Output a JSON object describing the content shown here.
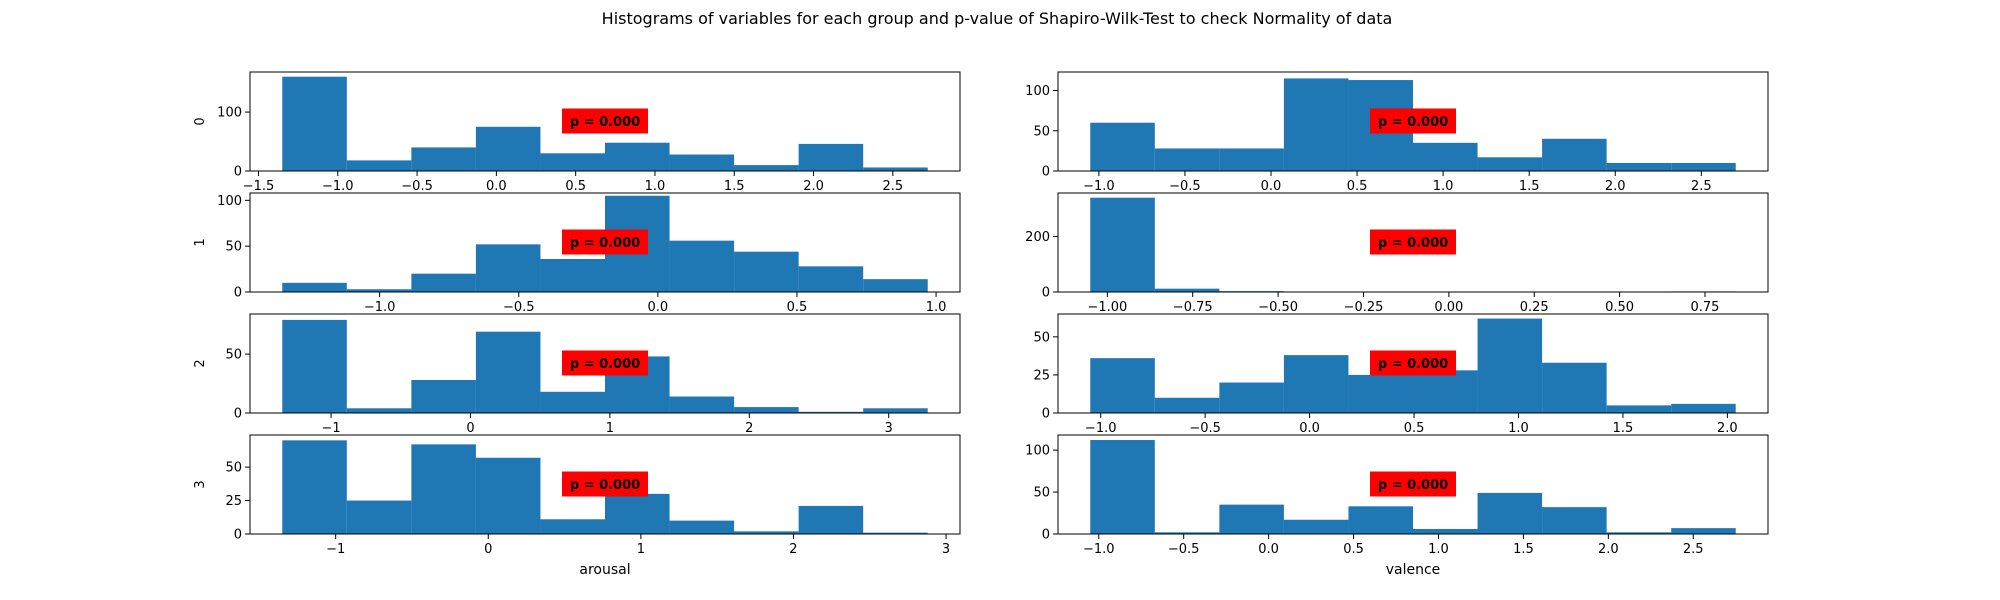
{
  "figure": {
    "title": "Histograms of variables for each group and p-value of Shapiro-Wilk-Test to check Normality of data"
  },
  "colors": {
    "bar": "#1f77b4",
    "pbox": "#ff0000"
  },
  "chart_data": [
    {
      "type": "bar",
      "panel": "arousal-group-0",
      "ylabel": "0",
      "xlabel": "",
      "annotation": "p = 0.000",
      "x_range": [
        -1.35,
        2.72
      ],
      "ylim": [
        0,
        168
      ],
      "xticks": [
        -1.5,
        -1.0,
        -0.5,
        0.0,
        0.5,
        1.0,
        1.5,
        2.0,
        2.5
      ],
      "xtick_labels": [
        "−1.5",
        "−1.0",
        "−0.5",
        "0.0",
        "0.5",
        "1.0",
        "1.5",
        "2.0",
        "2.5"
      ],
      "yticks": [
        0,
        100
      ],
      "ytick_labels": [
        "0",
        "100"
      ],
      "values": [
        160,
        18,
        40,
        75,
        30,
        48,
        28,
        10,
        46,
        6
      ]
    },
    {
      "type": "bar",
      "panel": "valence-group-0",
      "ylabel": "",
      "xlabel": "",
      "annotation": "p = 0.000",
      "x_range": [
        -1.05,
        2.7
      ],
      "ylim": [
        0,
        123
      ],
      "xticks": [
        -1.0,
        -0.5,
        0.0,
        0.5,
        1.0,
        1.5,
        2.0,
        2.5
      ],
      "xtick_labels": [
        "−1.0",
        "−0.5",
        "0.0",
        "0.5",
        "1.0",
        "1.5",
        "2.0",
        "2.5"
      ],
      "yticks": [
        0,
        50,
        100
      ],
      "ytick_labels": [
        "0",
        "50",
        "100"
      ],
      "values": [
        60,
        28,
        28,
        115,
        113,
        35,
        17,
        40,
        10,
        10
      ]
    },
    {
      "type": "bar",
      "panel": "arousal-group-1",
      "ylabel": "1",
      "xlabel": "",
      "annotation": "p = 0.000",
      "x_range": [
        -1.35,
        0.97
      ],
      "ylim": [
        0,
        108
      ],
      "xticks": [
        -1.0,
        -0.5,
        0.0,
        0.5,
        1.0
      ],
      "xtick_labels": [
        "−1.0",
        "−0.5",
        "0.0",
        "0.5",
        "1.0"
      ],
      "yticks": [
        0,
        50,
        100
      ],
      "ytick_labels": [
        "0",
        "50",
        "100"
      ],
      "values": [
        10,
        3,
        20,
        52,
        36,
        105,
        56,
        44,
        28,
        14
      ]
    },
    {
      "type": "bar",
      "panel": "valence-group-1",
      "ylabel": "",
      "xlabel": "",
      "annotation": "p = 0.000",
      "x_range": [
        -1.05,
        0.84
      ],
      "ylim": [
        0,
        357
      ],
      "xticks": [
        -1.0,
        -0.75,
        -0.5,
        -0.25,
        0.0,
        0.25,
        0.5,
        0.75
      ],
      "xtick_labels": [
        "−1.00",
        "−0.75",
        "−0.50",
        "−0.25",
        "0.00",
        "0.25",
        "0.50",
        "0.75"
      ],
      "yticks": [
        0,
        200
      ],
      "ytick_labels": [
        "0",
        "200"
      ],
      "values": [
        340,
        12,
        3,
        0,
        0,
        0,
        0,
        0,
        0,
        2
      ]
    },
    {
      "type": "bar",
      "panel": "arousal-group-2",
      "ylabel": "2",
      "xlabel": "",
      "annotation": "p = 0.000",
      "x_range": [
        -1.35,
        3.28
      ],
      "ylim": [
        0,
        84
      ],
      "xticks": [
        -1,
        0,
        1,
        2,
        3
      ],
      "xtick_labels": [
        "−1",
        "0",
        "1",
        "2",
        "3"
      ],
      "yticks": [
        0,
        50
      ],
      "ytick_labels": [
        "0",
        "50"
      ],
      "values": [
        79,
        4,
        28,
        69,
        18,
        48,
        14,
        5,
        1,
        4
      ]
    },
    {
      "type": "bar",
      "panel": "valence-group-2",
      "ylabel": "",
      "xlabel": "",
      "annotation": "p = 0.000",
      "x_range": [
        -1.05,
        2.04
      ],
      "ylim": [
        0,
        65
      ],
      "xticks": [
        -1.0,
        -0.5,
        0.0,
        0.5,
        1.0,
        1.5,
        2.0
      ],
      "xtick_labels": [
        "−1.0",
        "−0.5",
        "0.0",
        "0.5",
        "1.0",
        "1.5",
        "2.0"
      ],
      "yticks": [
        0,
        25,
        50
      ],
      "ytick_labels": [
        "0",
        "25",
        "50"
      ],
      "values": [
        36,
        10,
        20,
        38,
        25,
        28,
        62,
        33,
        5,
        6
      ]
    },
    {
      "type": "bar",
      "panel": "arousal-group-3",
      "ylabel": "3",
      "xlabel": "arousal",
      "annotation": "p = 0.000",
      "x_range": [
        -1.35,
        2.88
      ],
      "ylim": [
        0,
        74
      ],
      "xticks": [
        -1,
        0,
        1,
        2,
        3
      ],
      "xtick_labels": [
        "−1",
        "0",
        "1",
        "2",
        "3"
      ],
      "yticks": [
        0,
        25,
        50
      ],
      "ytick_labels": [
        "0",
        "25",
        "50"
      ],
      "values": [
        70,
        25,
        67,
        57,
        11,
        30,
        10,
        2,
        21,
        1
      ]
    },
    {
      "type": "bar",
      "panel": "valence-group-3",
      "ylabel": "",
      "xlabel": "valence",
      "annotation": "p = 0.000",
      "x_range": [
        -1.05,
        2.75
      ],
      "ylim": [
        0,
        118
      ],
      "xticks": [
        -1.0,
        -0.5,
        0.0,
        0.5,
        1.0,
        1.5,
        2.0,
        2.5
      ],
      "xtick_labels": [
        "−1.0",
        "−0.5",
        "0.0",
        "0.5",
        "1.0",
        "1.5",
        "2.0",
        "2.5"
      ],
      "yticks": [
        0,
        50,
        100
      ],
      "ytick_labels": [
        "0",
        "50",
        "100"
      ],
      "values": [
        112,
        2,
        35,
        17,
        33,
        6,
        49,
        32,
        2,
        7
      ]
    }
  ]
}
